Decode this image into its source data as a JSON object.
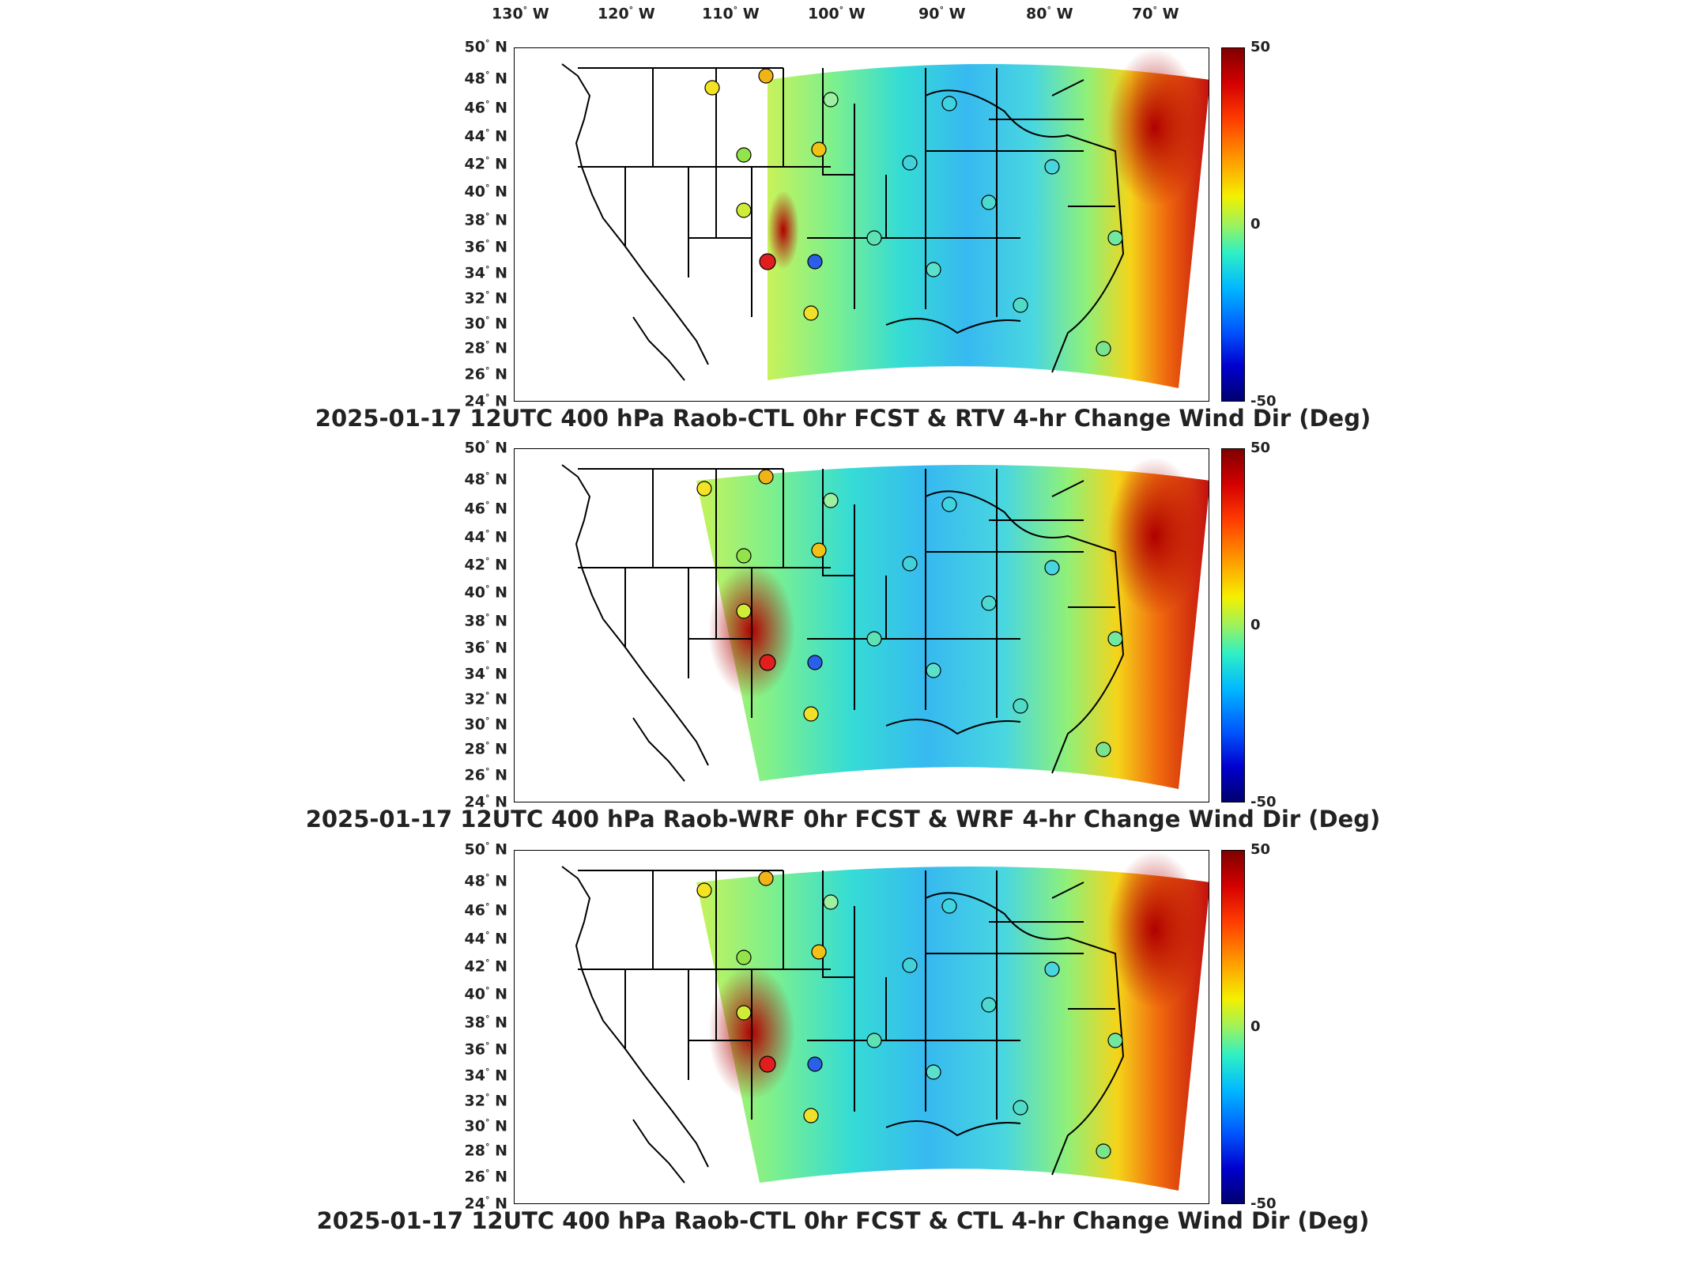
{
  "lon_labels": [
    "130",
    "120",
    "110",
    "100",
    "90",
    "80",
    "70"
  ],
  "lon_suffix": "W",
  "lat_labels": [
    "50",
    "48",
    "46",
    "44",
    "42",
    "40",
    "38",
    "36",
    "34",
    "32",
    "30",
    "28",
    "26",
    "24"
  ],
  "lat_suffix": "N",
  "colorbar": {
    "max": "50",
    "mid": "0",
    "min": "-50"
  },
  "panels": [
    {
      "title": "2025-01-17 12UTC 400 hPa Raob-CTL 0hr FCST & RTV 4-hr Change Wind Dir (Deg)"
    },
    {
      "title": "2025-01-17 12UTC 400 hPa Raob-WRF 0hr FCST & WRF 4-hr Change Wind Dir (Deg)"
    },
    {
      "title": "2025-01-17 12UTC 400 hPa Raob-CTL 0hr FCST & CTL 4-hr Change Wind Dir (Deg)"
    }
  ],
  "colors": {
    "max": "#7f0000",
    "mid": "#5ef089",
    "min": "#00006e"
  }
}
